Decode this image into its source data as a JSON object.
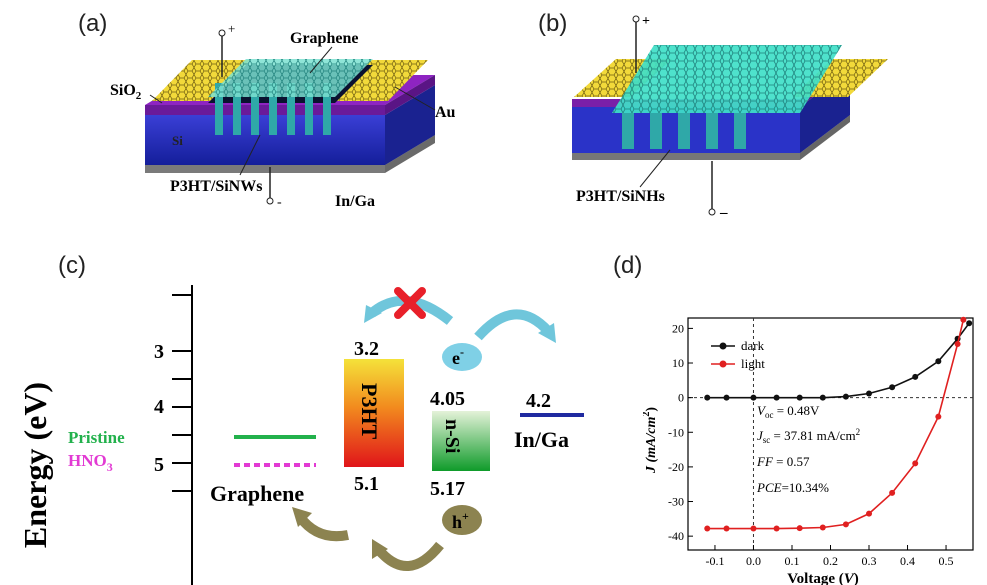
{
  "panels": {
    "a": {
      "label": "(a)",
      "texts": {
        "graphene": "Graphene",
        "sio2_main": "SiO",
        "sio2_sub": "2",
        "au": "Au",
        "si": "Si",
        "p3ht_sinws": "P3HT/SiNWs",
        "in_ga": "In/Ga",
        "plus": "+",
        "minus": "-"
      }
    },
    "b": {
      "label": "(b)",
      "texts": {
        "p3ht_sinhs": "P3HT/SiNHs",
        "plus": "+",
        "minus": "–"
      }
    },
    "c": {
      "label": "(c)",
      "y_axis_title": "Energy (eV)",
      "y_ticks": [
        "3",
        "4",
        "5"
      ],
      "legend": {
        "pristine": "Pristine",
        "hno3_main": "HNO",
        "hno3_sub": "3"
      },
      "labels": {
        "graphene": "Graphene",
        "p3ht": "P3HT",
        "p3ht_top": "3.2",
        "p3ht_bottom": "5.1",
        "nsi": "n-Si",
        "nsi_top": "4.05",
        "nsi_bottom": "5.17",
        "electron": "e",
        "electron_sup": "-",
        "hole": "h",
        "hole_sup": "+",
        "inga_value": "4.2",
        "inga": "In/Ga"
      },
      "colors": {
        "pristine": "#22b14c",
        "hno3": "#e23ad3",
        "inga_line": "#1f2aa0",
        "cross": "#e8202a",
        "arrow_e": "#6fc6db",
        "arrow_h": "#8c8350"
      }
    },
    "d": {
      "label": "(d)",
      "legend": [
        "dark",
        "light"
      ],
      "annotations": {
        "voc_sym": "V",
        "voc_sub": "oc",
        "voc_val": " = 0.48V",
        "jsc_sym": "J",
        "jsc_sub": "sc",
        "jsc_val": " = 37.81 mA/cm",
        "jsc_sup": "2",
        "ff_sym": "FF",
        "ff_val": " = 0.57",
        "pce_sym": "PCE",
        "pce_val": "=10.34%"
      },
      "y_label_main": "J (mA/cm",
      "y_label_sup": "2",
      "y_label_close": ")",
      "x_label_main": "Voltage (",
      "x_label_italic": "V",
      "x_label_close": ")"
    }
  },
  "chart_data": {
    "type": "line",
    "x_ticks": [
      "-0.1",
      "0.0",
      "0.1",
      "0.2",
      "0.3",
      "0.4",
      "0.5"
    ],
    "y_ticks": [
      "20",
      "10",
      "0",
      "-10",
      "-20",
      "-30",
      "-40"
    ],
    "xlim": [
      -0.17,
      0.57
    ],
    "ylim": [
      -44,
      23
    ],
    "series": [
      {
        "name": "dark",
        "color": "#111111",
        "x": [
          -0.12,
          -0.07,
          0.0,
          0.06,
          0.12,
          0.18,
          0.24,
          0.3,
          0.36,
          0.42,
          0.48,
          0.53,
          0.56
        ],
        "y": [
          0,
          0,
          0,
          0,
          0,
          0,
          0.3,
          1.2,
          3.0,
          6.0,
          10.5,
          17.0,
          21.5
        ]
      },
      {
        "name": "light",
        "color": "#e02020",
        "x": [
          -0.12,
          -0.07,
          0.0,
          0.06,
          0.12,
          0.18,
          0.24,
          0.3,
          0.36,
          0.42,
          0.48,
          0.53,
          0.545
        ],
        "y": [
          -37.8,
          -37.8,
          -37.8,
          -37.8,
          -37.7,
          -37.5,
          -36.6,
          -33.5,
          -27.5,
          -19.0,
          -5.5,
          15.5,
          22.5
        ]
      }
    ]
  }
}
